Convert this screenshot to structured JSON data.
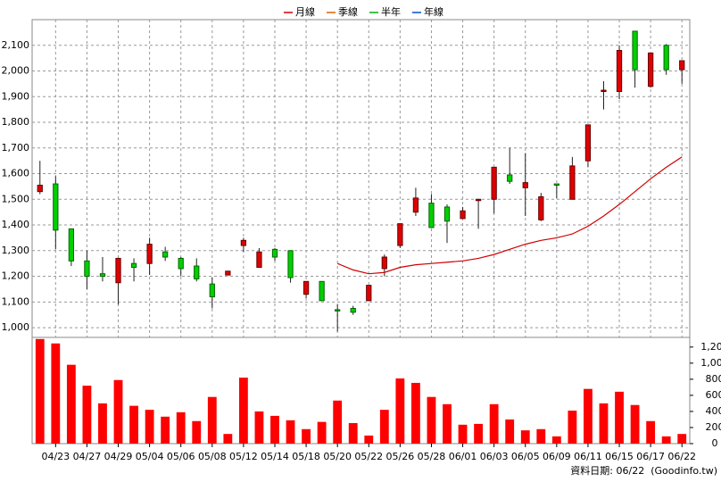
{
  "chart_data": [
    {
      "type": "candlestick",
      "legend": "top",
      "grid": true,
      "up_color": "#e00000",
      "down_color": "#00d000",
      "categories": [
        null,
        "04/23",
        null,
        "04/27",
        null,
        "04/29",
        null,
        "05/04",
        null,
        "05/06",
        null,
        "05/08",
        null,
        "05/12",
        null,
        "05/14",
        null,
        "05/18",
        null,
        "05/20",
        null,
        "05/22",
        null,
        "05/26",
        null,
        "05/28",
        null,
        "06/01",
        null,
        "06/03",
        null,
        "06/05",
        null,
        "06/09",
        null,
        "06/11",
        null,
        "06/15",
        null,
        "06/17",
        null,
        "06/22"
      ],
      "open": [
        1530,
        1560,
        1385,
        1260,
        1210,
        1175,
        1250,
        1250,
        1295,
        1270,
        1240,
        1170,
        1205,
        1320,
        1235,
        1305,
        1300,
        1130,
        1180,
        1070,
        1075,
        1105,
        1230,
        1320,
        1450,
        1485,
        1470,
        1425,
        1495,
        1500,
        1595,
        1545,
        1420,
        1560,
        1500,
        1650,
        1920,
        1920,
        2155,
        1940,
        2100,
        2005
      ],
      "high": [
        1650,
        1590,
        1385,
        1300,
        1275,
        1270,
        1270,
        1350,
        1315,
        1275,
        1270,
        1195,
        1220,
        1350,
        1310,
        1310,
        1300,
        1180,
        1180,
        1090,
        1085,
        1165,
        1285,
        1405,
        1545,
        1520,
        1480,
        1470,
        1500,
        1625,
        1700,
        1680,
        1525,
        1560,
        1665,
        1790,
        1960,
        2100,
        2155,
        2070,
        2105,
        2040
      ],
      "low": [
        1520,
        1305,
        1240,
        1150,
        1180,
        1090,
        1180,
        1205,
        1260,
        1200,
        1180,
        1075,
        1205,
        1295,
        1235,
        1260,
        1175,
        1115,
        1105,
        985,
        1050,
        1105,
        1200,
        1310,
        1435,
        1390,
        1330,
        1425,
        1385,
        1445,
        1560,
        1435,
        1415,
        1505,
        1500,
        1625,
        1850,
        1890,
        1935,
        1935,
        1985,
        1950
      ],
      "close": [
        1555,
        1380,
        1260,
        1200,
        1200,
        1270,
        1235,
        1325,
        1275,
        1230,
        1190,
        1120,
        1220,
        1340,
        1295,
        1275,
        1195,
        1180,
        1105,
        1065,
        1060,
        1165,
        1275,
        1405,
        1505,
        1390,
        1415,
        1455,
        1500,
        1625,
        1570,
        1565,
        1510,
        1555,
        1630,
        1790,
        1925,
        2080,
        2005,
        2070,
        2005,
        2040
      ],
      "series": [
        {
          "name": "月線",
          "color": "#d00000",
          "values": [
            null,
            null,
            null,
            null,
            null,
            null,
            null,
            null,
            null,
            null,
            null,
            null,
            null,
            null,
            null,
            null,
            null,
            null,
            null,
            1250,
            1225,
            1210,
            1215,
            1235,
            1245,
            1250,
            1255,
            1260,
            1270,
            1285,
            1305,
            1325,
            1340,
            1350,
            1365,
            1395,
            1435,
            1480,
            1530,
            1580,
            1625,
            1665
          ]
        },
        {
          "name": "季線",
          "color": "#e06000"
        },
        {
          "name": "半年",
          "color": "#00b000"
        },
        {
          "name": "年線",
          "color": "#0050d0"
        }
      ],
      "ylim": [
        962,
        2200
      ],
      "yticks": [
        {
          "value": 1000,
          "label": "1,000"
        },
        {
          "value": 1100,
          "label": "1,100"
        },
        {
          "value": 1200,
          "label": "1,200"
        },
        {
          "value": 1300,
          "label": "1,300"
        },
        {
          "value": 1400,
          "label": "1,400"
        },
        {
          "value": 1500,
          "label": "1,500"
        },
        {
          "value": 1600,
          "label": "1,600"
        },
        {
          "value": 1700,
          "label": "1,700"
        },
        {
          "value": 1800,
          "label": "1,800"
        },
        {
          "value": 1900,
          "label": "1,900"
        },
        {
          "value": 2000,
          "label": "2,000"
        },
        {
          "value": 2100,
          "label": "2,100"
        }
      ],
      "footer": "資料日期: 06/22  (Goodinfo.tw)"
    },
    {
      "type": "bar",
      "color": "#ff0000",
      "values": [
        1300,
        1245,
        980,
        720,
        500,
        790,
        470,
        420,
        335,
        390,
        280,
        580,
        120,
        820,
        400,
        345,
        290,
        180,
        270,
        535,
        255,
        100,
        420,
        810,
        755,
        580,
        490,
        235,
        245,
        490,
        300,
        165,
        180,
        90,
        410,
        680,
        500,
        645,
        480,
        280,
        90,
        120
      ],
      "ylim": [
        0,
        1320
      ],
      "yticks": [
        0,
        200,
        400,
        600,
        800,
        {
          "value": 1000,
          "label": "1,000"
        },
        {
          "value": 1200,
          "label": "1,200"
        }
      ]
    }
  ]
}
